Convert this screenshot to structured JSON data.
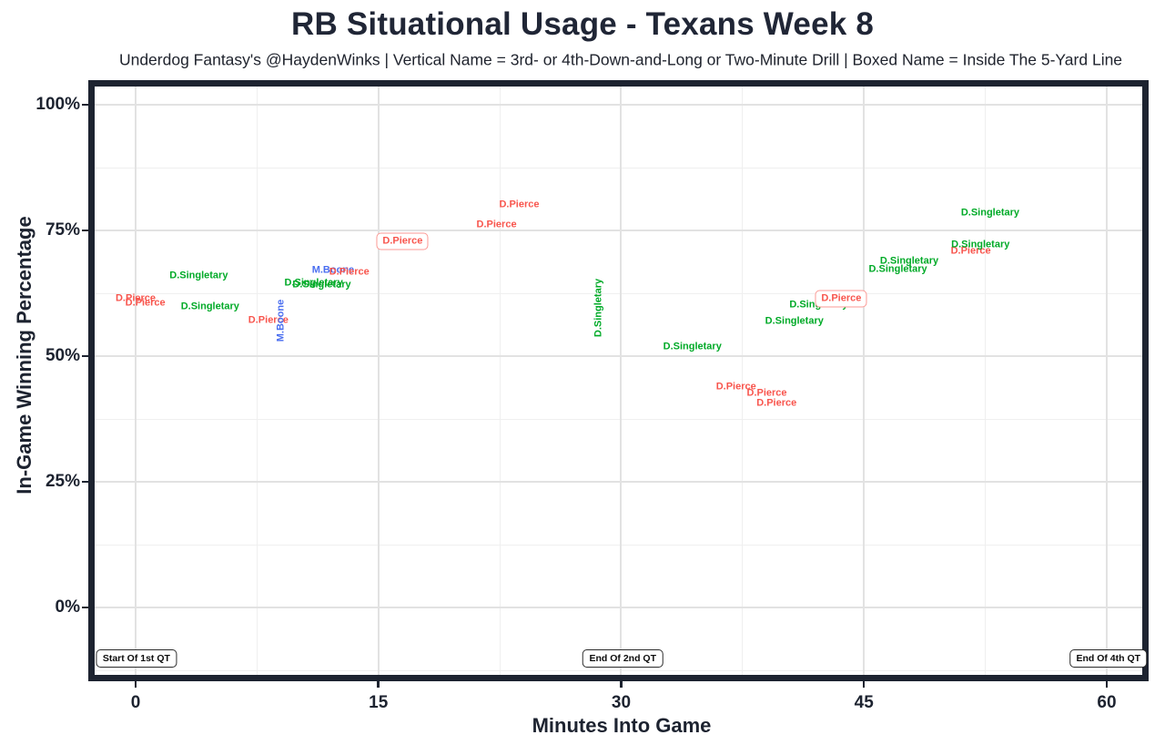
{
  "header": {
    "title": "RB Situational Usage - Texans Week 8",
    "subtitle": "Underdog Fantasy's @HaydenWinks | Vertical Name = 3rd- or 4th-Down-and-Long or Two-Minute Drill | Boxed Name = Inside The 5-Yard Line"
  },
  "chart_data": {
    "type": "scatter",
    "title": "RB Situational Usage - Texans Week 8",
    "subtitle": "Underdog Fantasy's @HaydenWinks | Vertical Name = 3rd- or 4th-Down-and-Long or Two-Minute Drill | Boxed Name = Inside The 5-Yard Line",
    "xlabel": "Minutes Into Game",
    "ylabel": "In-Game Winning Percentage",
    "xlim": [
      -2.5,
      62.2
    ],
    "ylim": [
      -13.4,
      103.6
    ],
    "grid": true,
    "legend": "none",
    "x_ticks": [
      0,
      15,
      30,
      45,
      60
    ],
    "x_tick_labels": [
      "0",
      "15",
      "30",
      "45",
      "60"
    ],
    "y_ticks": [
      0,
      25,
      50,
      75,
      100
    ],
    "y_tick_labels": [
      "0%",
      "25%",
      "50%",
      "75%",
      "100%"
    ],
    "x_grid_minor": [
      7.5,
      22.5,
      37.5,
      52.5
    ],
    "y_grid_minor": [
      -12.5,
      12.5,
      37.5,
      62.5,
      87.5
    ],
    "series_colors": {
      "D.Pierce": "#f8554d",
      "D.Singletary": "#00aa27",
      "M.Boone": "#4a6ef0"
    },
    "frame_color": "#1d2330",
    "points": [
      {
        "label": "D.Pierce",
        "x": 0.0,
        "y": 61.4,
        "orientation": "horizontal",
        "boxed": false
      },
      {
        "label": "D.Pierce",
        "x": 0.6,
        "y": 60.5,
        "orientation": "horizontal",
        "boxed": false
      },
      {
        "label": "D.Singletary",
        "x": 3.9,
        "y": 65.9,
        "orientation": "horizontal",
        "boxed": false
      },
      {
        "label": "D.Singletary",
        "x": 4.6,
        "y": 59.8,
        "orientation": "horizontal",
        "boxed": false
      },
      {
        "label": "D.Pierce",
        "x": 8.2,
        "y": 57.1,
        "orientation": "horizontal",
        "boxed": false
      },
      {
        "label": "M.Boone",
        "x": 9.0,
        "y": 57.1,
        "orientation": "vertical",
        "boxed": false
      },
      {
        "label": "D.Singletary",
        "x": 11.0,
        "y": 64.5,
        "orientation": "horizontal",
        "boxed": false
      },
      {
        "label": "D.Singletary",
        "x": 11.5,
        "y": 64.1,
        "orientation": "horizontal",
        "boxed": false
      },
      {
        "label": "M.Boone",
        "x": 12.2,
        "y": 67.0,
        "orientation": "horizontal",
        "boxed": false
      },
      {
        "label": "D.Pierce",
        "x": 13.2,
        "y": 66.7,
        "orientation": "horizontal",
        "boxed": false
      },
      {
        "label": "D.Pierce",
        "x": 16.5,
        "y": 72.8,
        "orientation": "horizontal",
        "boxed": true
      },
      {
        "label": "D.Pierce",
        "x": 22.3,
        "y": 76.1,
        "orientation": "horizontal",
        "boxed": false
      },
      {
        "label": "D.Pierce",
        "x": 23.7,
        "y": 80.1,
        "orientation": "horizontal",
        "boxed": false
      },
      {
        "label": "D.Singletary",
        "x": 28.6,
        "y": 59.6,
        "orientation": "vertical",
        "boxed": false
      },
      {
        "label": "D.Singletary",
        "x": 34.4,
        "y": 51.8,
        "orientation": "horizontal",
        "boxed": false
      },
      {
        "label": "D.Pierce",
        "x": 37.1,
        "y": 43.8,
        "orientation": "horizontal",
        "boxed": false
      },
      {
        "label": "D.Pierce",
        "x": 39.0,
        "y": 42.6,
        "orientation": "horizontal",
        "boxed": false
      },
      {
        "label": "D.Pierce",
        "x": 39.6,
        "y": 40.6,
        "orientation": "horizontal",
        "boxed": false
      },
      {
        "label": "D.Singletary",
        "x": 40.7,
        "y": 56.9,
        "orientation": "horizontal",
        "boxed": false
      },
      {
        "label": "D.Singletary",
        "x": 42.2,
        "y": 60.1,
        "orientation": "horizontal",
        "boxed": false
      },
      {
        "label": "D.Pierce",
        "x": 43.6,
        "y": 61.4,
        "orientation": "horizontal",
        "boxed": true
      },
      {
        "label": "D.Singletary",
        "x": 47.1,
        "y": 67.2,
        "orientation": "horizontal",
        "boxed": false
      },
      {
        "label": "D.Singletary",
        "x": 47.8,
        "y": 68.8,
        "orientation": "horizontal",
        "boxed": false
      },
      {
        "label": "D.Pierce",
        "x": 51.6,
        "y": 70.8,
        "orientation": "horizontal",
        "boxed": false
      },
      {
        "label": "D.Singletary",
        "x": 52.2,
        "y": 72.1,
        "orientation": "horizontal",
        "boxed": false
      },
      {
        "label": "D.Singletary",
        "x": 52.8,
        "y": 78.4,
        "orientation": "horizontal",
        "boxed": false
      }
    ],
    "annotations": [
      {
        "label": "Start Of 1st QT",
        "x": 0.05,
        "y": -10.1
      },
      {
        "label": "End Of 2nd QT",
        "x": 30.1,
        "y": -10.1
      },
      {
        "label": "End Of 4th QT",
        "x": 60.1,
        "y": -10.1
      }
    ]
  }
}
